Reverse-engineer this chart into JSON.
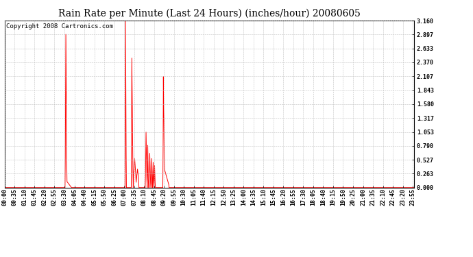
{
  "title": "Rain Rate per Minute (Last 24 Hours) (inches/hour) 20080605",
  "copyright": "Copyright 2008 Cartronics.com",
  "line_color": "#FF0000",
  "bg_color": "#FFFFFF",
  "grid_color": "#BBBBBB",
  "yticks": [
    0.0,
    0.263,
    0.527,
    0.79,
    1.053,
    1.317,
    1.58,
    1.843,
    2.107,
    2.37,
    2.633,
    2.897,
    3.16
  ],
  "ymax": 3.16,
  "ymin": 0.0,
  "title_fontsize": 10,
  "copyright_fontsize": 6.5,
  "tick_fontsize": 6.0,
  "xtick_interval_min": 35,
  "total_minutes": 1440
}
